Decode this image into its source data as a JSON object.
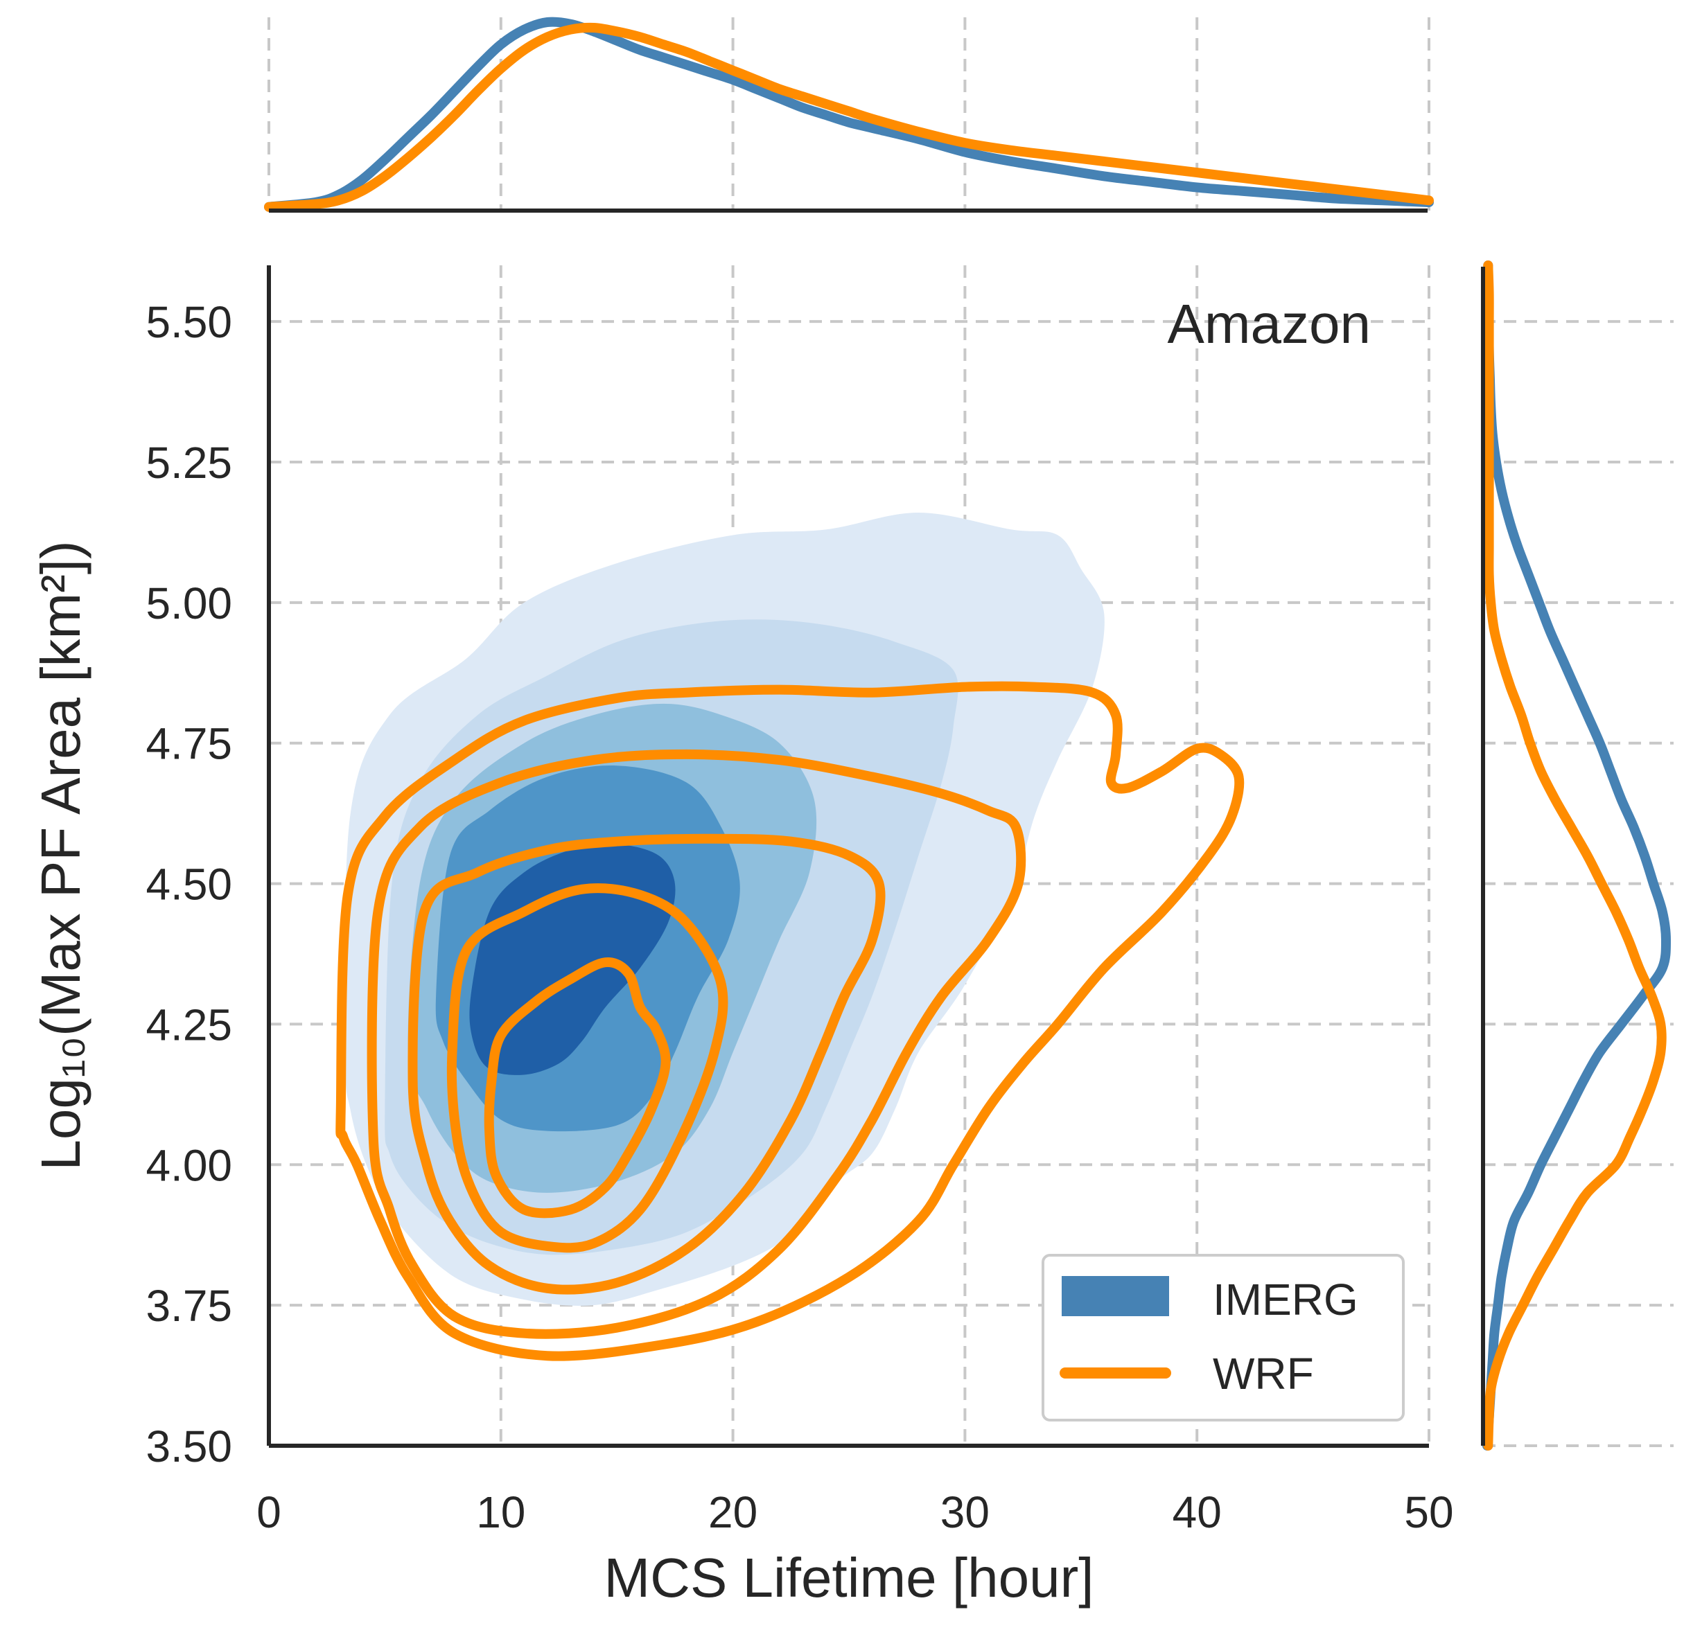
{
  "chart_data": {
    "type": "joint-kde",
    "region_label": "Amazon",
    "xlabel": "MCS Lifetime [hour]",
    "ylabel": "Log₁₀(Max PF Area [km²])",
    "xlim": [
      0,
      50
    ],
    "ylim": [
      3.5,
      5.6
    ],
    "xticks": [
      0,
      10,
      20,
      30,
      40,
      50
    ],
    "yticks": [
      3.5,
      3.75,
      4.0,
      4.25,
      4.5,
      4.75,
      5.0,
      5.25,
      5.5
    ],
    "xtick_labels": [
      "0",
      "10",
      "20",
      "30",
      "40",
      "50"
    ],
    "ytick_labels": [
      "3.50",
      "3.75",
      "4.00",
      "4.25",
      "4.50",
      "4.75",
      "5.00",
      "5.25",
      "5.50"
    ],
    "grid": true,
    "legend": {
      "placement": "lower-right",
      "entries": [
        {
          "label": "IMERG",
          "style": "filled"
        },
        {
          "label": "WRF",
          "style": "line"
        }
      ]
    },
    "colors": {
      "imerg_line": "#4682b4",
      "wrf": "#ff8c00",
      "imerg_levels": [
        "#dde9f6",
        "#c6dbef",
        "#8fbfdd",
        "#4f95c8",
        "#1f5fa7"
      ]
    },
    "imerg_contours": [
      [
        [
          3.3,
          4.2
        ],
        [
          3.5,
          4.62
        ],
        [
          5.2,
          4.8
        ],
        [
          8.5,
          4.9
        ],
        [
          11,
          5.0
        ],
        [
          15,
          5.07
        ],
        [
          20,
          5.12
        ],
        [
          24,
          5.13
        ],
        [
          28,
          5.16
        ],
        [
          32,
          5.13
        ],
        [
          34,
          5.12
        ],
        [
          35,
          5.06
        ],
        [
          36,
          4.98
        ],
        [
          35.5,
          4.85
        ],
        [
          34,
          4.72
        ],
        [
          33,
          4.62
        ],
        [
          32,
          4.48
        ],
        [
          30,
          4.32
        ],
        [
          28,
          4.2
        ],
        [
          27,
          4.1
        ],
        [
          26,
          4.02
        ],
        [
          24.5,
          3.97
        ],
        [
          23,
          3.9
        ],
        [
          22,
          3.86
        ],
        [
          20,
          3.82
        ],
        [
          17,
          3.78
        ],
        [
          14,
          3.75
        ],
        [
          11,
          3.76
        ],
        [
          8,
          3.8
        ],
        [
          5.5,
          3.9
        ],
        [
          4.2,
          4.0
        ],
        [
          3.5,
          4.1
        ]
      ],
      [
        [
          5.0,
          4.1
        ],
        [
          5.3,
          4.5
        ],
        [
          6.5,
          4.68
        ],
        [
          9,
          4.8
        ],
        [
          12,
          4.87
        ],
        [
          15,
          4.93
        ],
        [
          18,
          4.96
        ],
        [
          21,
          4.97
        ],
        [
          24,
          4.96
        ],
        [
          27,
          4.93
        ],
        [
          29.5,
          4.88
        ],
        [
          29.5,
          4.78
        ],
        [
          29,
          4.68
        ],
        [
          28,
          4.55
        ],
        [
          27,
          4.42
        ],
        [
          26,
          4.3
        ],
        [
          25,
          4.2
        ],
        [
          24,
          4.1
        ],
        [
          23,
          4.02
        ],
        [
          21,
          3.95
        ],
        [
          18,
          3.88
        ],
        [
          15,
          3.85
        ],
        [
          12,
          3.84
        ],
        [
          9.5,
          3.86
        ],
        [
          7.5,
          3.9
        ],
        [
          6,
          3.96
        ],
        [
          5.2,
          4.02
        ]
      ],
      [
        [
          6.0,
          4.2
        ],
        [
          6.5,
          4.5
        ],
        [
          8,
          4.65
        ],
        [
          11,
          4.75
        ],
        [
          14,
          4.8
        ],
        [
          17,
          4.82
        ],
        [
          19.5,
          4.8
        ],
        [
          22,
          4.75
        ],
        [
          23.5,
          4.65
        ],
        [
          23.3,
          4.52
        ],
        [
          22,
          4.4
        ],
        [
          21,
          4.3
        ],
        [
          20,
          4.2
        ],
        [
          19,
          4.1
        ],
        [
          17.5,
          4.02
        ],
        [
          15,
          3.97
        ],
        [
          12,
          3.95
        ],
        [
          9.5,
          3.97
        ],
        [
          8,
          4.02
        ],
        [
          6.8,
          4.1
        ]
      ],
      [
        [
          7.2,
          4.3
        ],
        [
          7.8,
          4.55
        ],
        [
          9.5,
          4.63
        ],
        [
          12,
          4.69
        ],
        [
          15,
          4.71
        ],
        [
          18,
          4.68
        ],
        [
          19.5,
          4.6
        ],
        [
          20.3,
          4.5
        ],
        [
          19.8,
          4.4
        ],
        [
          18.5,
          4.3
        ],
        [
          17.5,
          4.2
        ],
        [
          16.5,
          4.12
        ],
        [
          15,
          4.07
        ],
        [
          12,
          4.06
        ],
        [
          10,
          4.08
        ],
        [
          8.5,
          4.15
        ],
        [
          7.5,
          4.22
        ]
      ],
      [
        [
          8.7,
          4.3
        ],
        [
          9.5,
          4.45
        ],
        [
          11,
          4.52
        ],
        [
          13,
          4.56
        ],
        [
          15,
          4.57
        ],
        [
          16.8,
          4.55
        ],
        [
          17.5,
          4.5
        ],
        [
          17.2,
          4.43
        ],
        [
          16,
          4.35
        ],
        [
          14.5,
          4.28
        ],
        [
          13.5,
          4.22
        ],
        [
          12.5,
          4.18
        ],
        [
          11,
          4.16
        ],
        [
          9.5,
          4.17
        ],
        [
          8.8,
          4.22
        ]
      ]
    ],
    "wrf_contours": [
      [
        [
          3.1,
          4.1
        ],
        [
          3.4,
          4.48
        ],
        [
          5,
          4.62
        ],
        [
          8,
          4.72
        ],
        [
          11,
          4.79
        ],
        [
          15,
          4.83
        ],
        [
          18,
          4.84
        ],
        [
          22,
          4.845
        ],
        [
          26,
          4.84
        ],
        [
          30,
          4.85
        ],
        [
          33,
          4.85
        ],
        [
          35.5,
          4.84
        ],
        [
          36.5,
          4.8
        ],
        [
          36.5,
          4.73
        ],
        [
          36.3,
          4.68
        ],
        [
          37,
          4.67
        ],
        [
          38.5,
          4.7
        ],
        [
          40,
          4.74
        ],
        [
          41,
          4.73
        ],
        [
          41.8,
          4.69
        ],
        [
          41.5,
          4.62
        ],
        [
          40.5,
          4.55
        ],
        [
          38.5,
          4.45
        ],
        [
          36,
          4.35
        ],
        [
          34,
          4.25
        ],
        [
          32.5,
          4.18
        ],
        [
          31,
          4.1
        ],
        [
          29.5,
          4.0
        ],
        [
          28,
          3.9
        ],
        [
          25,
          3.8
        ],
        [
          21,
          3.72
        ],
        [
          17,
          3.68
        ],
        [
          12,
          3.66
        ],
        [
          8,
          3.7
        ],
        [
          6,
          3.8
        ],
        [
          4.8,
          3.9
        ],
        [
          3.8,
          4.0
        ],
        [
          3.2,
          4.05
        ]
      ],
      [
        [
          4.5,
          4.05
        ],
        [
          4.7,
          4.45
        ],
        [
          6.5,
          4.6
        ],
        [
          10,
          4.68
        ],
        [
          14,
          4.72
        ],
        [
          18,
          4.73
        ],
        [
          22,
          4.72
        ],
        [
          26,
          4.69
        ],
        [
          29,
          4.66
        ],
        [
          31,
          4.63
        ],
        [
          32.2,
          4.6
        ],
        [
          32.3,
          4.5
        ],
        [
          31,
          4.4
        ],
        [
          29,
          4.3
        ],
        [
          27.5,
          4.2
        ],
        [
          26,
          4.08
        ],
        [
          24.5,
          3.98
        ],
        [
          22,
          3.85
        ],
        [
          19,
          3.76
        ],
        [
          15,
          3.71
        ],
        [
          11,
          3.7
        ],
        [
          8,
          3.73
        ],
        [
          6.2,
          3.82
        ],
        [
          5.2,
          3.92
        ]
      ],
      [
        [
          6.2,
          4.15
        ],
        [
          6.7,
          4.45
        ],
        [
          9,
          4.52
        ],
        [
          12,
          4.56
        ],
        [
          15,
          4.575
        ],
        [
          19,
          4.58
        ],
        [
          22.5,
          4.575
        ],
        [
          25,
          4.55
        ],
        [
          26.3,
          4.5
        ],
        [
          26,
          4.4
        ],
        [
          24.8,
          4.3
        ],
        [
          23.8,
          4.2
        ],
        [
          22.5,
          4.08
        ],
        [
          20.5,
          3.95
        ],
        [
          18,
          3.85
        ],
        [
          15,
          3.79
        ],
        [
          12,
          3.78
        ],
        [
          9.5,
          3.82
        ],
        [
          7.8,
          3.9
        ],
        [
          6.8,
          4.0
        ]
      ],
      [
        [
          7.9,
          4.2
        ],
        [
          8.5,
          4.38
        ],
        [
          11,
          4.45
        ],
        [
          13.5,
          4.49
        ],
        [
          16,
          4.48
        ],
        [
          18,
          4.43
        ],
        [
          19.5,
          4.32
        ],
        [
          19.2,
          4.2
        ],
        [
          17.8,
          4.05
        ],
        [
          16,
          3.92
        ],
        [
          14,
          3.86
        ],
        [
          12,
          3.855
        ],
        [
          10,
          3.88
        ],
        [
          8.8,
          3.95
        ],
        [
          8.1,
          4.05
        ]
      ],
      [
        [
          9.6,
          4.15
        ],
        [
          10,
          4.23
        ],
        [
          11.5,
          4.29
        ],
        [
          13,
          4.33
        ],
        [
          14.5,
          4.36
        ],
        [
          15.5,
          4.34
        ],
        [
          16.0,
          4.28
        ],
        [
          16.7,
          4.24
        ],
        [
          17.1,
          4.18
        ],
        [
          16.5,
          4.1
        ],
        [
          15.5,
          4.02
        ],
        [
          14.5,
          3.96
        ],
        [
          13,
          3.92
        ],
        [
          11,
          3.92
        ],
        [
          9.8,
          3.98
        ],
        [
          9.5,
          4.06
        ]
      ]
    ],
    "x_marginal": {
      "x": [
        0,
        2,
        3,
        4,
        5,
        6,
        7,
        8,
        9,
        10,
        11,
        12,
        13,
        14,
        15,
        16,
        17,
        18,
        19,
        20,
        21,
        22,
        23,
        24,
        25,
        26,
        28,
        30,
        32,
        34,
        36,
        38,
        40,
        42,
        44,
        46,
        48,
        50
      ],
      "imerg": [
        0.005,
        0.03,
        0.07,
        0.15,
        0.26,
        0.38,
        0.5,
        0.63,
        0.76,
        0.88,
        0.96,
        1.0,
        0.99,
        0.95,
        0.9,
        0.85,
        0.81,
        0.77,
        0.73,
        0.69,
        0.64,
        0.59,
        0.54,
        0.5,
        0.46,
        0.43,
        0.37,
        0.3,
        0.25,
        0.21,
        0.17,
        0.14,
        0.11,
        0.09,
        0.07,
        0.05,
        0.04,
        0.03
      ],
      "wrf": [
        0.005,
        0.02,
        0.04,
        0.09,
        0.17,
        0.27,
        0.38,
        0.5,
        0.63,
        0.75,
        0.85,
        0.92,
        0.96,
        0.97,
        0.95,
        0.92,
        0.88,
        0.84,
        0.79,
        0.74,
        0.69,
        0.64,
        0.6,
        0.56,
        0.52,
        0.48,
        0.41,
        0.35,
        0.31,
        0.28,
        0.25,
        0.22,
        0.19,
        0.16,
        0.13,
        0.1,
        0.07,
        0.04
      ]
    },
    "y_marginal": {
      "y": [
        3.5,
        3.55,
        3.6,
        3.65,
        3.7,
        3.75,
        3.8,
        3.85,
        3.9,
        3.95,
        4.0,
        4.05,
        4.1,
        4.15,
        4.2,
        4.25,
        4.3,
        4.35,
        4.4,
        4.45,
        4.5,
        4.55,
        4.6,
        4.65,
        4.7,
        4.75,
        4.8,
        4.85,
        4.9,
        4.95,
        5.0,
        5.05,
        5.1,
        5.15,
        5.2,
        5.25,
        5.3,
        5.35,
        5.4,
        5.45,
        5.5,
        5.55,
        5.6
      ],
      "imerg": [
        0,
        0.01,
        0.02,
        0.03,
        0.04,
        0.06,
        0.08,
        0.11,
        0.15,
        0.23,
        0.3,
        0.38,
        0.46,
        0.54,
        0.63,
        0.75,
        0.87,
        0.98,
        1.0,
        0.98,
        0.93,
        0.88,
        0.82,
        0.75,
        0.69,
        0.63,
        0.56,
        0.49,
        0.42,
        0.35,
        0.29,
        0.23,
        0.17,
        0.12,
        0.08,
        0.05,
        0.03,
        0.02,
        0.015,
        0.01,
        0.008,
        0.005,
        0.005
      ],
      "wrf": [
        0.005,
        0.01,
        0.02,
        0.06,
        0.12,
        0.2,
        0.28,
        0.37,
        0.46,
        0.56,
        0.72,
        0.8,
        0.87,
        0.93,
        0.97,
        0.97,
        0.92,
        0.85,
        0.79,
        0.72,
        0.64,
        0.56,
        0.47,
        0.38,
        0.3,
        0.24,
        0.19,
        0.13,
        0.08,
        0.04,
        0.02,
        0.01,
        0.01,
        0.01,
        0.01,
        0.01,
        0.01,
        0.01,
        0.01,
        0.01,
        0.01,
        0.01,
        0.005
      ]
    }
  }
}
